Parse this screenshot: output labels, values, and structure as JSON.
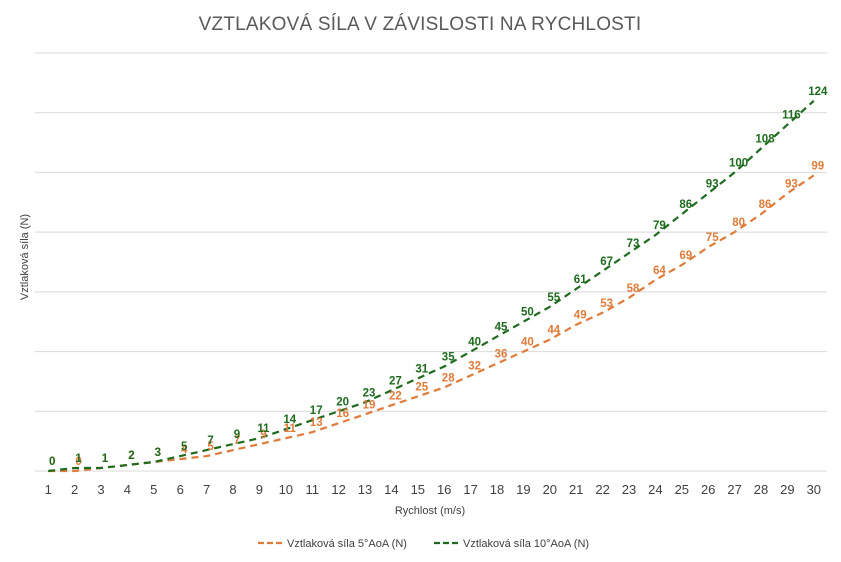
{
  "chart_data": {
    "type": "line",
    "title": "VZTLAKOVÁ SÍLA V ZÁVISLOSTI NA RYCHLOSTI",
    "xlabel": "Rychlost (m/s)",
    "ylabel": "Vztlaková síla (N)",
    "categories": [
      1,
      2,
      3,
      4,
      5,
      6,
      7,
      8,
      9,
      10,
      11,
      12,
      13,
      14,
      15,
      16,
      17,
      18,
      19,
      20,
      21,
      22,
      23,
      24,
      25,
      26,
      27,
      28,
      29,
      30
    ],
    "ylim": [
      0,
      140
    ],
    "grid": true,
    "legend_position": "bottom",
    "series": [
      {
        "name": "Vztlaková síla 5°AoA (N)",
        "color": "#e07b39",
        "values": [
          0,
          0,
          1,
          2,
          3,
          4,
          5,
          7,
          9,
          11,
          13,
          16,
          19,
          22,
          25,
          28,
          32,
          36,
          40,
          44,
          49,
          53,
          58,
          64,
          69,
          75,
          80,
          86,
          93,
          99
        ]
      },
      {
        "name": "Vztlaková síla 10°AoA (N)",
        "color": "#1e6b1e",
        "values": [
          0,
          1,
          1,
          2,
          3,
          5,
          7,
          9,
          11,
          14,
          17,
          20,
          23,
          27,
          31,
          35,
          40,
          45,
          50,
          55,
          61,
          67,
          73,
          79,
          86,
          93,
          100,
          108,
          116,
          124
        ]
      }
    ]
  }
}
